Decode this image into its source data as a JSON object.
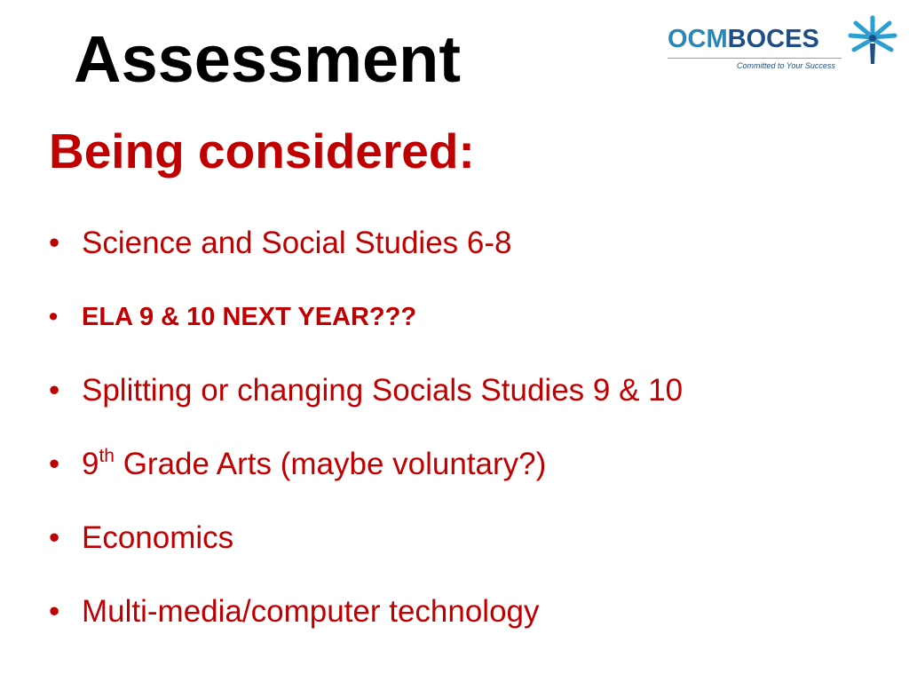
{
  "title": "Assessment",
  "subtitle": "Being considered:",
  "logo": {
    "part1": "OCM",
    "part2": "BOCES",
    "tagline": "Committed to Your Success",
    "colors": {
      "ocm": "#2a86b4",
      "boces": "#1f4e86"
    }
  },
  "bullets": [
    {
      "text": "Science and  Social Studies 6-8"
    },
    {
      "text": "ELA 9 & 10 NEXT YEAR???",
      "bold": true
    },
    {
      "text": "Splitting or changing Socials Studies 9  & 10"
    },
    {
      "pre": "9",
      "sup": "th",
      "text": " Grade Arts (maybe voluntary?)"
    },
    {
      "text": "Economics"
    },
    {
      "text": "Multi-media/computer technology"
    }
  ],
  "bullet_glyph": "•",
  "accent_color": "#c00000"
}
